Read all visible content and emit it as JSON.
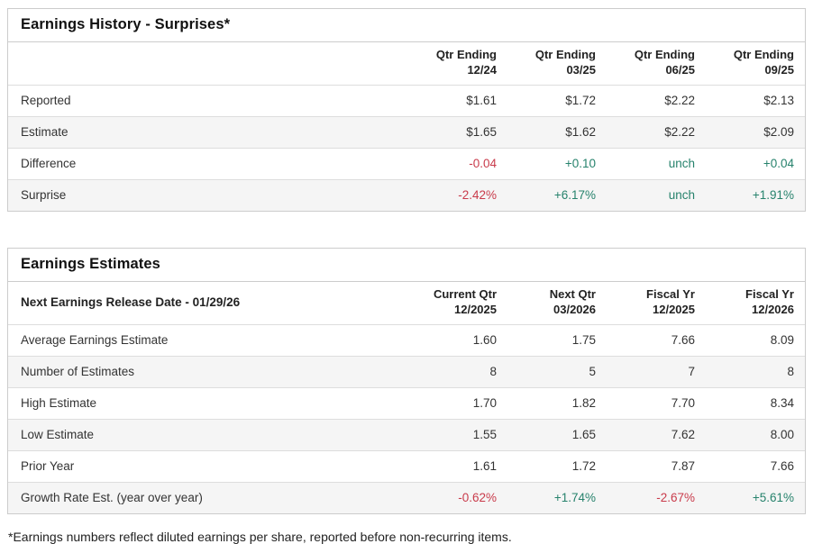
{
  "colors": {
    "positive": "#26826c",
    "negative": "#c93b4b",
    "stripe": "#f5f5f5",
    "panel_border": "#cccccc"
  },
  "history": {
    "title": "Earnings History - Surprises*",
    "columns": [
      "Qtr Ending\n12/24",
      "Qtr Ending\n03/25",
      "Qtr Ending\n06/25",
      "Qtr Ending\n09/25"
    ],
    "rows": [
      {
        "label": "Reported",
        "values": [
          "$1.61",
          "$1.72",
          "$2.22",
          "$2.13"
        ]
      },
      {
        "label": "Estimate",
        "values": [
          "$1.65",
          "$1.62",
          "$2.22",
          "$2.09"
        ]
      },
      {
        "label": "Difference",
        "values": [
          "-0.04",
          "+0.10",
          "unch",
          "+0.04"
        ]
      },
      {
        "label": "Surprise",
        "values": [
          "-2.42%",
          "+6.17%",
          "unch",
          "+1.91%"
        ]
      }
    ]
  },
  "estimates": {
    "title": "Earnings Estimates",
    "release_date_label": "Next Earnings Release Date - 01/29/26",
    "columns": [
      "Current Qtr\n12/2025",
      "Next Qtr\n03/2026",
      "Fiscal Yr\n12/2025",
      "Fiscal Yr\n12/2026"
    ],
    "rows": [
      {
        "label": "Average Earnings Estimate",
        "values": [
          "1.60",
          "1.75",
          "7.66",
          "8.09"
        ]
      },
      {
        "label": "Number of Estimates",
        "values": [
          "8",
          "5",
          "7",
          "8"
        ]
      },
      {
        "label": "High Estimate",
        "values": [
          "1.70",
          "1.82",
          "7.70",
          "8.34"
        ]
      },
      {
        "label": "Low Estimate",
        "values": [
          "1.55",
          "1.65",
          "7.62",
          "8.00"
        ]
      },
      {
        "label": "Prior Year",
        "values": [
          "1.61",
          "1.72",
          "7.87",
          "7.66"
        ]
      },
      {
        "label": "Growth Rate Est. (year over year)",
        "values": [
          "-0.62%",
          "+1.74%",
          "-2.67%",
          "+5.61%"
        ]
      }
    ]
  },
  "footnote": "*Earnings numbers reflect diluted earnings per share, reported before non-recurring items."
}
